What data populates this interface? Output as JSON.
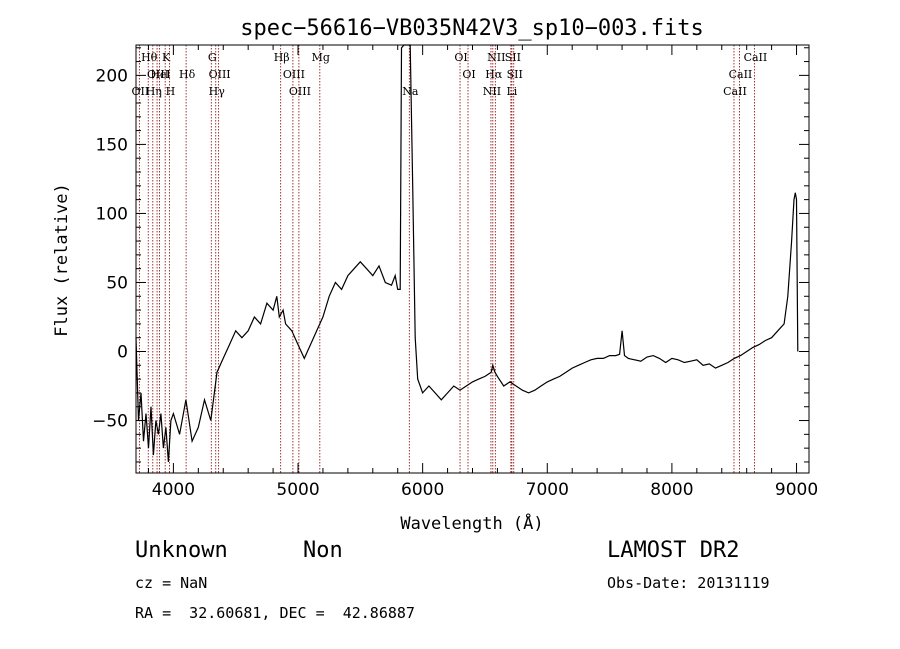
{
  "chart_data": {
    "type": "line",
    "title": "spec−56616−VB035N42V3_sp10−003.fits",
    "xlabel": "Wavelength (Å)",
    "ylabel": "Flux (relative)",
    "xlim": [
      3700,
      9100
    ],
    "ylim": [
      -88,
      222
    ],
    "xticks": [
      4000,
      5000,
      6000,
      7000,
      8000,
      9000
    ],
    "yticks": [
      -50,
      0,
      50,
      100,
      150,
      200
    ],
    "grid": false,
    "legend": "none",
    "line_color": "#000000",
    "marker_color": "#8b0000",
    "series": [
      {
        "x": [
          3700,
          3720,
          3740,
          3760,
          3780,
          3800,
          3820,
          3840,
          3860,
          3880,
          3900,
          3920,
          3940,
          3960,
          3980,
          4000,
          4050,
          4100,
          4150,
          4200,
          4250,
          4300,
          4350,
          4400,
          4450,
          4500,
          4550,
          4600,
          4650,
          4700,
          4750,
          4800,
          4830,
          4850,
          4880,
          4900,
          4950,
          5000,
          5050,
          5100,
          5150,
          5200,
          5250,
          5300,
          5350,
          5400,
          5450,
          5500,
          5550,
          5600,
          5650,
          5700,
          5750,
          5780,
          5800,
          5820,
          5830,
          5850,
          5880,
          5900,
          5920,
          5940,
          5960,
          5980,
          6000,
          6050,
          6100,
          6150,
          6200,
          6250,
          6300,
          6350,
          6400,
          6450,
          6500,
          6550,
          6563,
          6580,
          6600,
          6650,
          6700,
          6750,
          6800,
          6850,
          6900,
          6950,
          7000,
          7050,
          7100,
          7150,
          7200,
          7250,
          7300,
          7350,
          7400,
          7450,
          7500,
          7550,
          7580,
          7600,
          7620,
          7650,
          7700,
          7750,
          7800,
          7850,
          7900,
          7950,
          8000,
          8050,
          8100,
          8150,
          8200,
          8250,
          8300,
          8350,
          8400,
          8450,
          8500,
          8550,
          8600,
          8650,
          8700,
          8750,
          8800,
          8850,
          8900,
          8930,
          8960,
          8980,
          8990,
          9000,
          9010
        ],
        "y": [
          10,
          -50,
          -30,
          -65,
          -45,
          -70,
          -40,
          -75,
          -50,
          -60,
          -45,
          -70,
          -55,
          -80,
          -50,
          -45,
          -60,
          -35,
          -65,
          -55,
          -35,
          -50,
          -15,
          -5,
          5,
          15,
          10,
          15,
          25,
          20,
          35,
          30,
          40,
          25,
          30,
          20,
          15,
          5,
          -5,
          5,
          15,
          25,
          40,
          50,
          45,
          55,
          60,
          65,
          60,
          55,
          62,
          50,
          48,
          55,
          45,
          45,
          220,
          222,
          222,
          222,
          120,
          10,
          -20,
          -25,
          -30,
          -25,
          -30,
          -35,
          -30,
          -25,
          -28,
          -25,
          -22,
          -20,
          -18,
          -15,
          -10,
          -15,
          -18,
          -25,
          -22,
          -25,
          -28,
          -30,
          -28,
          -25,
          -22,
          -20,
          -18,
          -15,
          -12,
          -10,
          -8,
          -6,
          -5,
          -5,
          -3,
          -3,
          -2,
          15,
          -3,
          -5,
          -6,
          -7,
          -4,
          -3,
          -5,
          -8,
          -5,
          -6,
          -8,
          -7,
          -6,
          -10,
          -9,
          -12,
          -10,
          -8,
          -5,
          -3,
          0,
          3,
          5,
          8,
          10,
          15,
          20,
          40,
          80,
          110,
          115,
          110,
          0
        ]
      }
    ],
    "lines": [
      {
        "label": "Hθ",
        "wl": 3798,
        "row": 0
      },
      {
        "label": "K",
        "wl": 3934,
        "row": 0
      },
      {
        "label": "G",
        "wl": 4304,
        "row": 0
      },
      {
        "label": "Hβ",
        "wl": 4861,
        "row": 0
      },
      {
        "label": "Mg",
        "wl": 5175,
        "row": 0
      },
      {
        "label": "OI",
        "wl": 6300,
        "row": 0
      },
      {
        "label": "NII",
        "wl": 6583,
        "row": 0
      },
      {
        "label": "SII",
        "wl": 6716,
        "row": 0
      },
      {
        "label": "CaII",
        "wl": 8662,
        "row": 0
      },
      {
        "label": "OIII",
        "wl": 3869,
        "row": 1
      },
      {
        "label": "HeI",
        "wl": 3889,
        "row": 1
      },
      {
        "label": "Hδ",
        "wl": 4102,
        "row": 1
      },
      {
        "label": "OIII",
        "wl": 4363,
        "row": 1
      },
      {
        "label": "OIII",
        "wl": 4959,
        "row": 1
      },
      {
        "label": "OI",
        "wl": 6364,
        "row": 1
      },
      {
        "label": "Hα",
        "wl": 6563,
        "row": 1
      },
      {
        "label": "SII",
        "wl": 6731,
        "row": 1
      },
      {
        "label": "CaII",
        "wl": 8542,
        "row": 1
      },
      {
        "label": "OII",
        "wl": 3727,
        "row": 2
      },
      {
        "label": "Hη",
        "wl": 3835,
        "row": 2
      },
      {
        "label": "H",
        "wl": 3968,
        "row": 2
      },
      {
        "label": "Hγ",
        "wl": 4340,
        "row": 2
      },
      {
        "label": "OIII",
        "wl": 5007,
        "row": 2
      },
      {
        "label": "Na",
        "wl": 5893,
        "row": 2
      },
      {
        "label": "NII",
        "wl": 6548,
        "row": 2
      },
      {
        "label": "Li",
        "wl": 6708,
        "row": 2
      },
      {
        "label": "CaII",
        "wl": 8498,
        "row": 2
      }
    ]
  },
  "info": {
    "class": "Unknown",
    "subclass": "Non",
    "survey": "LAMOST DR2",
    "cz": "cz = NaN",
    "obs_date": "Obs-Date: 20131119",
    "coords": "RA =  32.60681, DEC =  42.86887"
  }
}
